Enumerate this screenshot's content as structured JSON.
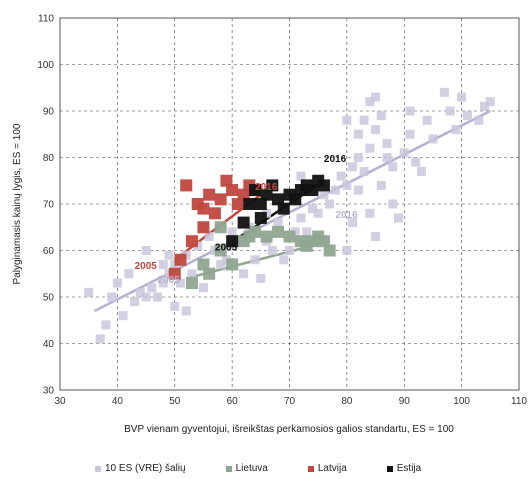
{
  "chart_data": {
    "type": "scatter",
    "xlabel": "BVP vienam gyventojui, išreikštas perkamosios galios standartu, ES = 100",
    "ylabel": "Palyginamasis kainų lygis, ES = 100",
    "xlim": [
      30,
      110
    ],
    "ylim": [
      30,
      110
    ],
    "xticks": [
      30,
      40,
      50,
      60,
      70,
      80,
      90,
      100,
      110
    ],
    "yticks": [
      30,
      40,
      50,
      60,
      70,
      80,
      90,
      100,
      110
    ],
    "grid": true,
    "legend_position": "bottom",
    "series": [
      {
        "name": "10 ES (VRE) šalių",
        "color": "#c9c7dc",
        "points": [
          [
            35,
            51
          ],
          [
            37,
            41
          ],
          [
            38,
            44
          ],
          [
            39,
            50
          ],
          [
            40,
            53
          ],
          [
            41,
            46
          ],
          [
            42,
            55
          ],
          [
            43,
            49
          ],
          [
            44,
            51
          ],
          [
            45,
            50
          ],
          [
            45,
            60
          ],
          [
            46,
            52
          ],
          [
            47,
            50
          ],
          [
            48,
            53
          ],
          [
            48,
            57
          ],
          [
            49,
            55
          ],
          [
            49,
            59
          ],
          [
            50,
            57
          ],
          [
            50,
            48
          ],
          [
            51,
            53
          ],
          [
            52,
            59
          ],
          [
            53,
            55
          ],
          [
            54,
            61
          ],
          [
            55,
            52
          ],
          [
            56,
            63
          ],
          [
            57,
            60
          ],
          [
            58,
            57
          ],
          [
            59,
            58
          ],
          [
            60,
            61
          ],
          [
            61,
            62
          ],
          [
            62,
            55
          ],
          [
            63,
            65
          ],
          [
            64,
            58
          ],
          [
            65,
            54
          ],
          [
            66,
            62
          ],
          [
            67,
            60
          ],
          [
            68,
            66
          ],
          [
            69,
            58
          ],
          [
            70,
            60
          ],
          [
            71,
            64
          ],
          [
            72,
            67
          ],
          [
            73,
            64
          ],
          [
            74,
            69
          ],
          [
            75,
            68
          ],
          [
            76,
            72
          ],
          [
            77,
            70
          ],
          [
            78,
            73
          ],
          [
            79,
            76
          ],
          [
            80,
            74
          ],
          [
            80,
            60
          ],
          [
            81,
            78
          ],
          [
            81,
            66
          ],
          [
            82,
            80
          ],
          [
            82,
            85
          ],
          [
            83,
            77
          ],
          [
            83,
            88
          ],
          [
            84,
            82
          ],
          [
            84,
            68
          ],
          [
            85,
            86
          ],
          [
            85,
            63
          ],
          [
            86,
            89
          ],
          [
            86,
            74
          ],
          [
            87,
            80
          ],
          [
            87,
            83
          ],
          [
            88,
            70
          ],
          [
            88,
            78
          ],
          [
            89,
            67
          ],
          [
            90,
            81
          ],
          [
            91,
            90
          ],
          [
            92,
            79
          ],
          [
            94,
            88
          ],
          [
            95,
            84
          ],
          [
            97,
            94
          ],
          [
            98,
            90
          ],
          [
            99,
            86
          ],
          [
            100,
            93
          ],
          [
            101,
            89
          ],
          [
            103,
            88
          ],
          [
            104,
            91
          ],
          [
            105,
            92
          ],
          [
            91,
            85
          ],
          [
            93,
            77
          ],
          [
            85,
            93
          ],
          [
            80,
            88
          ],
          [
            84,
            92
          ],
          [
            82,
            73
          ],
          [
            72,
            76
          ],
          [
            66,
            68
          ],
          [
            60,
            64
          ],
          [
            55,
            65
          ],
          [
            52,
            47
          ]
        ],
        "trend": [
          [
            36,
            47
          ],
          [
            105,
            90
          ]
        ]
      },
      {
        "name": "Lietuva",
        "color": "#8fa790",
        "points": [
          [
            53,
            53
          ],
          [
            55,
            57
          ],
          [
            56,
            55
          ],
          [
            58,
            60
          ],
          [
            60,
            57
          ],
          [
            62,
            62
          ],
          [
            63,
            63
          ],
          [
            64,
            64
          ],
          [
            66,
            63
          ],
          [
            68,
            64
          ],
          [
            70,
            63
          ],
          [
            72,
            62
          ],
          [
            73,
            61
          ],
          [
            74,
            62
          ],
          [
            75,
            63
          ],
          [
            76,
            62
          ],
          [
            77,
            60
          ],
          [
            58,
            65
          ]
        ],
        "trend": [
          [
            52,
            54
          ],
          [
            77,
            62
          ]
        ]
      },
      {
        "name": "Latvija",
        "color": "#c0473f",
        "points": [
          [
            50,
            55
          ],
          [
            51,
            58
          ],
          [
            52,
            74
          ],
          [
            53,
            62
          ],
          [
            54,
            70
          ],
          [
            55,
            69
          ],
          [
            56,
            72
          ],
          [
            57,
            68
          ],
          [
            58,
            71
          ],
          [
            59,
            75
          ],
          [
            60,
            73
          ],
          [
            61,
            70
          ],
          [
            62,
            72
          ],
          [
            63,
            74
          ],
          [
            64,
            73
          ],
          [
            55,
            65
          ]
        ],
        "trend": [
          [
            50,
            58
          ],
          [
            65,
            72
          ]
        ]
      },
      {
        "name": "Estija",
        "color": "#111111",
        "points": [
          [
            60,
            62
          ],
          [
            62,
            66
          ],
          [
            63,
            70
          ],
          [
            64,
            73
          ],
          [
            65,
            70
          ],
          [
            66,
            72
          ],
          [
            67,
            74
          ],
          [
            68,
            71
          ],
          [
            69,
            69
          ],
          [
            70,
            72
          ],
          [
            71,
            71
          ],
          [
            72,
            73
          ],
          [
            73,
            74
          ],
          [
            74,
            73
          ],
          [
            75,
            75
          ],
          [
            76,
            74
          ],
          [
            65,
            67
          ]
        ],
        "trend": [
          [
            59,
            61
          ],
          [
            76,
            75
          ]
        ]
      }
    ],
    "annotations": [
      {
        "text": "2016",
        "x": 76,
        "y": 79,
        "color": "#111111"
      },
      {
        "text": "2016",
        "x": 64,
        "y": 73,
        "color": "#c0473f"
      },
      {
        "text": "2016",
        "x": 78,
        "y": 67,
        "color": "#b5b3cc"
      },
      {
        "text": "2005",
        "x": 57,
        "y": 60,
        "color": "#111111"
      },
      {
        "text": "2005",
        "x": 43,
        "y": 56,
        "color": "#c0473f"
      },
      {
        "text": "2005",
        "x": 47,
        "y": 53,
        "color": "#b5b3cc"
      }
    ]
  }
}
